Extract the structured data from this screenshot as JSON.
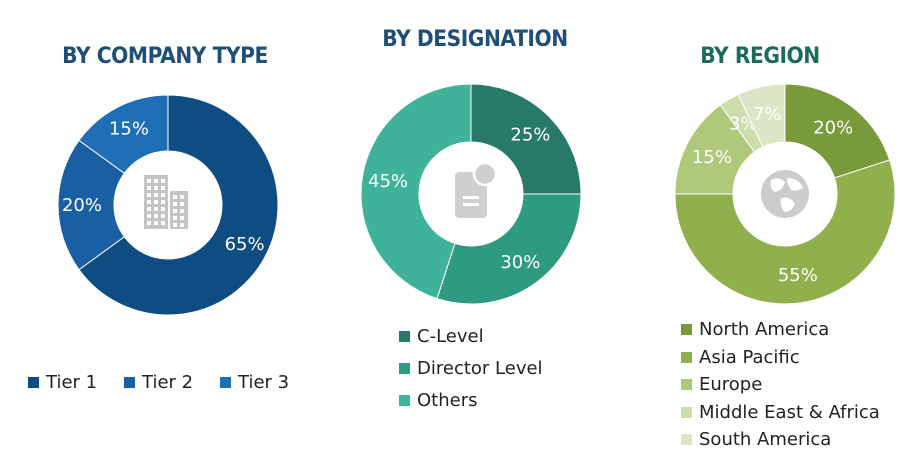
{
  "chart_data": [
    {
      "type": "pie",
      "title": "BY COMPANY TYPE",
      "title_color": "#1f4e79",
      "center_icon": "building-icon",
      "categories": [
        "Tier 1",
        "Tier 2",
        "Tier 3"
      ],
      "values": [
        65,
        20,
        15
      ],
      "labels": [
        "65%",
        "20%",
        "15%"
      ],
      "colors": [
        "#0f4c81",
        "#1a5fa3",
        "#1f6eb8"
      ],
      "legend_position": "bottom"
    },
    {
      "type": "pie",
      "title": "BY DESIGNATION",
      "title_color": "#1f4e79",
      "center_icon": "document-icon",
      "categories": [
        "C-Level",
        "Director Level",
        "Others"
      ],
      "values": [
        25,
        30,
        45
      ],
      "labels": [
        "25%",
        "30%",
        "45%"
      ],
      "colors": [
        "#277a6a",
        "#2f9a82",
        "#3fb39a"
      ],
      "legend_position": "bottom"
    },
    {
      "type": "pie",
      "title": "BY REGION",
      "title_color": "#1e6b5c",
      "center_icon": "globe-icon",
      "categories": [
        "North America",
        "Asia Pacific",
        "Europe",
        "Middle East & Africa",
        "South America"
      ],
      "values": [
        20,
        55,
        15,
        3,
        7
      ],
      "labels": [
        "20%",
        "55%",
        "15%",
        "3%",
        "7%"
      ],
      "colors": [
        "#789a3a",
        "#8fb04c",
        "#aec97a",
        "#ccdcaa",
        "#dce6c6"
      ],
      "legend_position": "bottom"
    }
  ]
}
